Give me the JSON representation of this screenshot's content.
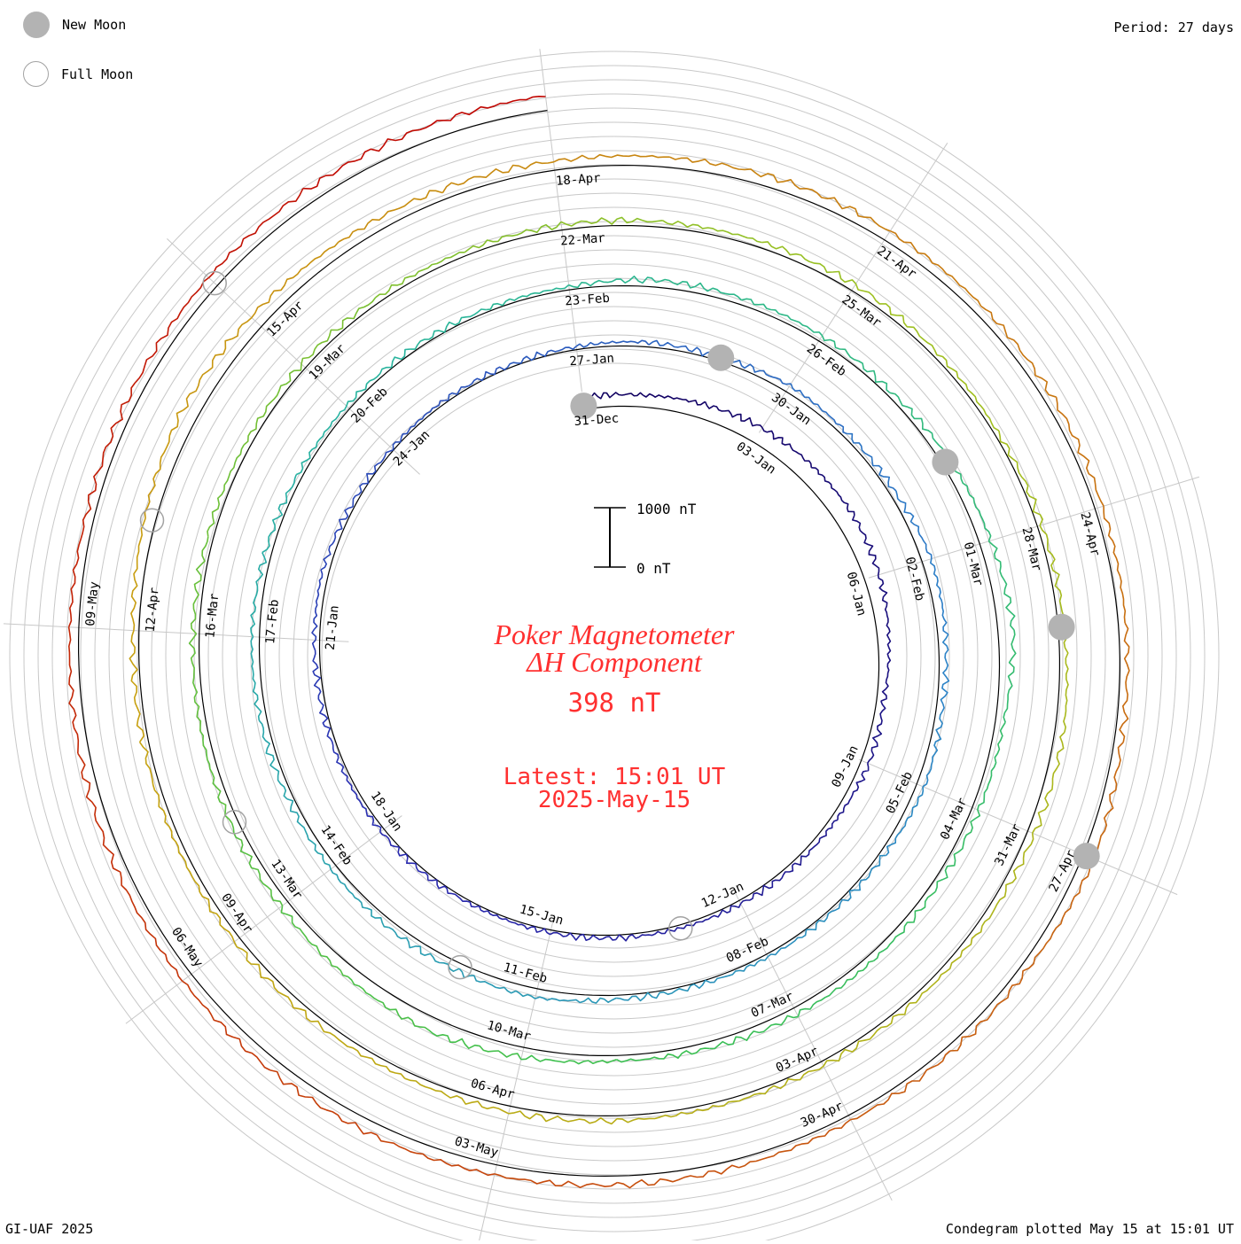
{
  "legend": {
    "new_moon_label": "New Moon",
    "full_moon_label": "Full Moon",
    "new_moon_color": "#b3b3b3",
    "full_moon_color": "#a3a3a3"
  },
  "period_label": "Period: 27 days",
  "footer_left": "GI-UAF 2025",
  "footer_right": "Condegram plotted May 15 at 15:01 UT",
  "center": {
    "title_line1": "Poker Magnetometer",
    "title_line2": "ΔH Component",
    "current_value": "398 nT",
    "latest_label": "Latest: 15:01 UT",
    "latest_date": "2025-May-15",
    "text_color": "#ff3030"
  },
  "scale_bar": {
    "top_label": "1000 nT",
    "bottom_label": "0 nT"
  },
  "chart_data": {
    "type": "line",
    "subtype": "spiral condegram",
    "period_days": 27,
    "start_date": "2024-12-31",
    "end_date": "2025-05-15",
    "y_unit": "nT",
    "color_gradient": [
      "#100060",
      "#2a2ab0",
      "#2c82c8",
      "#28b4a0",
      "#3cc050",
      "#a0c020",
      "#c8a010",
      "#c86010",
      "#c00000"
    ],
    "rotations": [
      {
        "start": "31-Dec",
        "tick_labels": [
          "31-Dec",
          "03-Jan",
          "06-Jan",
          "09-Jan",
          "12-Jan",
          "15-Jan",
          "18-Jan",
          "21-Jan",
          "24-Jan"
        ]
      },
      {
        "start": "27-Jan",
        "tick_labels": [
          "27-Jan",
          "30-Jan",
          "02-Feb",
          "05-Feb",
          "08-Feb",
          "11-Feb",
          "14-Feb",
          "17-Feb",
          "20-Feb"
        ]
      },
      {
        "start": "23-Feb",
        "tick_labels": [
          "23-Feb",
          "26-Feb",
          "01-Mar",
          "04-Mar",
          "07-Mar",
          "10-Mar",
          "13-Mar",
          "16-Mar",
          "19-Mar"
        ]
      },
      {
        "start": "22-Mar",
        "tick_labels": [
          "22-Mar",
          "25-Mar",
          "28-Mar",
          "31-Mar",
          "03-Apr",
          "06-Apr",
          "09-Apr",
          "12-Apr",
          "15-Apr"
        ]
      },
      {
        "start": "18-Apr",
        "tick_labels": [
          "18-Apr",
          "21-Apr",
          "24-Apr",
          "27-Apr",
          "30-Apr",
          "03-May",
          "06-May",
          "09-May"
        ]
      }
    ],
    "new_moons": [
      "2024-12-30",
      "2025-01-29",
      "2025-02-28",
      "2025-03-29",
      "2025-04-27"
    ],
    "full_moons": [
      "2025-01-13",
      "2025-02-12",
      "2025-03-14",
      "2025-04-13",
      "2025-05-12"
    ],
    "daily_dH_nT": [
      [
        1,
        200
      ],
      [
        3,
        280
      ],
      [
        5,
        300
      ],
      [
        6,
        260
      ],
      [
        8,
        120
      ],
      [
        9,
        140
      ],
      [
        10,
        90
      ],
      [
        12,
        60
      ],
      [
        14,
        50
      ],
      [
        16,
        40
      ],
      [
        18,
        60
      ],
      [
        20,
        70
      ],
      [
        21,
        90
      ],
      [
        22,
        110
      ],
      [
        23,
        60
      ],
      [
        24,
        40
      ],
      [
        25,
        50
      ],
      [
        26,
        40
      ],
      [
        27,
        50
      ],
      [
        28,
        80
      ],
      [
        29,
        60
      ],
      [
        30,
        120
      ],
      [
        31,
        80
      ],
      [
        32,
        90
      ],
      [
        33,
        160
      ],
      [
        35,
        100
      ],
      [
        36,
        140
      ],
      [
        37,
        80
      ],
      [
        38,
        60
      ],
      [
        40,
        50
      ],
      [
        41,
        70
      ],
      [
        42,
        150
      ],
      [
        44,
        120
      ],
      [
        46,
        90
      ],
      [
        48,
        130
      ],
      [
        50,
        80
      ],
      [
        52,
        60
      ],
      [
        54,
        50
      ],
      [
        55,
        120
      ],
      [
        57,
        100
      ],
      [
        58,
        80
      ],
      [
        60,
        200
      ],
      [
        61,
        260
      ],
      [
        62,
        140
      ],
      [
        64,
        100
      ],
      [
        66,
        120
      ],
      [
        68,
        90
      ],
      [
        70,
        240
      ],
      [
        72,
        140
      ],
      [
        74,
        110
      ],
      [
        76,
        100
      ],
      [
        78,
        90
      ],
      [
        80,
        80
      ],
      [
        82,
        90
      ],
      [
        84,
        110
      ],
      [
        86,
        60
      ],
      [
        88,
        100
      ],
      [
        89,
        150
      ],
      [
        90,
        120
      ],
      [
        92,
        80
      ],
      [
        94,
        70
      ],
      [
        96,
        100
      ],
      [
        98,
        110
      ],
      [
        100,
        90
      ],
      [
        102,
        100
      ],
      [
        104,
        280
      ],
      [
        106,
        200
      ],
      [
        108,
        150
      ],
      [
        110,
        180
      ],
      [
        112,
        160
      ],
      [
        114,
        130
      ],
      [
        116,
        120
      ],
      [
        117,
        200
      ],
      [
        118,
        120
      ],
      [
        120,
        100
      ],
      [
        122,
        150
      ],
      [
        124,
        200
      ],
      [
        126,
        180
      ],
      [
        128,
        160
      ],
      [
        130,
        140
      ],
      [
        132,
        200
      ],
      [
        134,
        240
      ],
      [
        135,
        250
      ]
    ]
  }
}
